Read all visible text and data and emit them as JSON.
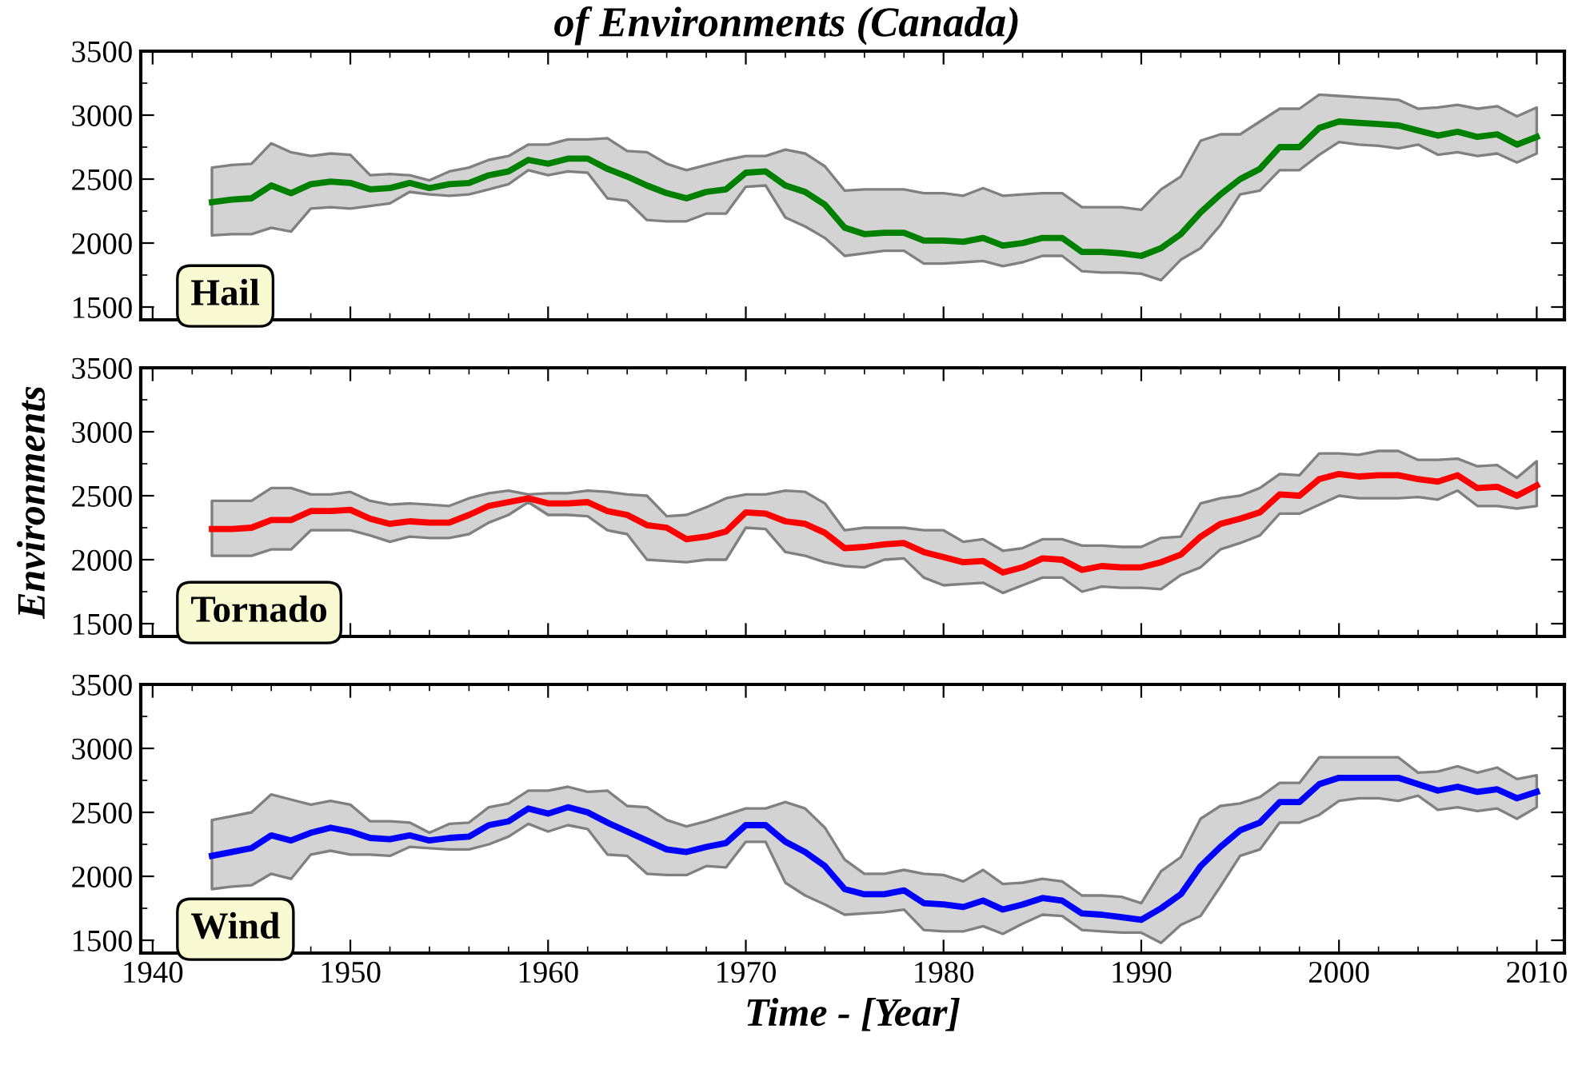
{
  "chart_data": [
    {
      "type": "line",
      "title": "of Environments (Canada)",
      "annotations": [
        "Hail"
      ],
      "xlim": [
        1939.4,
        2011.4
      ],
      "xticks": [
        1940,
        1950,
        1960,
        1970,
        1980,
        1990,
        2000,
        2010
      ],
      "ylim": [
        1400,
        3500
      ],
      "yticks": [
        1500,
        2000,
        2500,
        3000,
        3500
      ],
      "tick_labels": "y",
      "grid": false,
      "x": [
        1943,
        1944,
        1945,
        1946,
        1947,
        1948,
        1949,
        1950,
        1951,
        1952,
        1953,
        1954,
        1955,
        1956,
        1957,
        1958,
        1959,
        1960,
        1961,
        1962,
        1963,
        1964,
        1965,
        1966,
        1967,
        1968,
        1969,
        1970,
        1971,
        1972,
        1973,
        1974,
        1975,
        1976,
        1977,
        1978,
        1979,
        1980,
        1981,
        1982,
        1983,
        1984,
        1985,
        1986,
        1987,
        1988,
        1989,
        1990,
        1991,
        1992,
        1993,
        1994,
        1995,
        1996,
        1997,
        1998,
        1999,
        2000,
        2001,
        2002,
        2003,
        2004,
        2005,
        2006,
        2007,
        2008,
        2009,
        2010
      ],
      "series": [
        {
          "color": "#008000",
          "values": [
            2320,
            2340,
            2350,
            2450,
            2390,
            2460,
            2480,
            2470,
            2420,
            2430,
            2470,
            2430,
            2460,
            2470,
            2530,
            2560,
            2650,
            2620,
            2660,
            2660,
            2580,
            2520,
            2450,
            2390,
            2350,
            2400,
            2420,
            2550,
            2560,
            2450,
            2400,
            2300,
            2120,
            2070,
            2080,
            2080,
            2020,
            2020,
            2010,
            2040,
            1980,
            2000,
            2040,
            2040,
            1930,
            1930,
            1920,
            1900,
            1960,
            2070,
            2240,
            2380,
            2500,
            2580,
            2750,
            2750,
            2900,
            2950,
            2940,
            2930,
            2920,
            2880,
            2840,
            2870,
            2830,
            2850,
            2770,
            2830
          ],
          "upper": [
            2590,
            2610,
            2620,
            2780,
            2710,
            2680,
            2700,
            2690,
            2530,
            2540,
            2530,
            2490,
            2560,
            2590,
            2650,
            2680,
            2770,
            2770,
            2810,
            2810,
            2820,
            2720,
            2710,
            2620,
            2570,
            2610,
            2650,
            2680,
            2680,
            2730,
            2700,
            2600,
            2410,
            2420,
            2420,
            2420,
            2390,
            2390,
            2370,
            2430,
            2370,
            2380,
            2390,
            2390,
            2280,
            2280,
            2280,
            2260,
            2420,
            2520,
            2800,
            2850,
            2850,
            2950,
            3050,
            3050,
            3160,
            3150,
            3140,
            3130,
            3120,
            3050,
            3060,
            3080,
            3050,
            3070,
            2990,
            3060
          ],
          "lower": [
            2060,
            2070,
            2070,
            2120,
            2090,
            2270,
            2280,
            2270,
            2290,
            2310,
            2400,
            2380,
            2370,
            2380,
            2420,
            2460,
            2570,
            2530,
            2560,
            2550,
            2350,
            2330,
            2180,
            2170,
            2170,
            2230,
            2230,
            2440,
            2450,
            2200,
            2130,
            2040,
            1900,
            1920,
            1940,
            1940,
            1840,
            1840,
            1850,
            1860,
            1820,
            1850,
            1900,
            1900,
            1780,
            1770,
            1770,
            1760,
            1710,
            1870,
            1960,
            2140,
            2380,
            2410,
            2570,
            2570,
            2690,
            2790,
            2770,
            2760,
            2740,
            2770,
            2690,
            2710,
            2680,
            2700,
            2630,
            2700
          ]
        }
      ]
    },
    {
      "type": "line",
      "ylabel": "Environments",
      "annotations": [
        "Tornado"
      ],
      "xlim": [
        1939.4,
        2011.4
      ],
      "xticks": [
        1940,
        1950,
        1960,
        1970,
        1980,
        1990,
        2000,
        2010
      ],
      "ylim": [
        1400,
        3500
      ],
      "yticks": [
        1500,
        2000,
        2500,
        3000,
        3500
      ],
      "tick_labels": "y",
      "grid": false,
      "x": [
        1943,
        1944,
        1945,
        1946,
        1947,
        1948,
        1949,
        1950,
        1951,
        1952,
        1953,
        1954,
        1955,
        1956,
        1957,
        1958,
        1959,
        1960,
        1961,
        1962,
        1963,
        1964,
        1965,
        1966,
        1967,
        1968,
        1969,
        1970,
        1971,
        1972,
        1973,
        1974,
        1975,
        1976,
        1977,
        1978,
        1979,
        1980,
        1981,
        1982,
        1983,
        1984,
        1985,
        1986,
        1987,
        1988,
        1989,
        1990,
        1991,
        1992,
        1993,
        1994,
        1995,
        1996,
        1997,
        1998,
        1999,
        2000,
        2001,
        2002,
        2003,
        2004,
        2005,
        2006,
        2007,
        2008,
        2009,
        2010
      ],
      "series": [
        {
          "color": "#ff0000",
          "values": [
            2240,
            2240,
            2250,
            2310,
            2310,
            2380,
            2380,
            2390,
            2320,
            2280,
            2300,
            2290,
            2290,
            2350,
            2420,
            2450,
            2480,
            2440,
            2440,
            2450,
            2380,
            2350,
            2270,
            2250,
            2160,
            2180,
            2220,
            2370,
            2360,
            2300,
            2280,
            2210,
            2090,
            2100,
            2120,
            2130,
            2060,
            2020,
            1980,
            1990,
            1900,
            1940,
            2010,
            2000,
            1920,
            1950,
            1940,
            1940,
            1980,
            2040,
            2180,
            2280,
            2320,
            2370,
            2510,
            2500,
            2630,
            2670,
            2650,
            2660,
            2660,
            2630,
            2610,
            2660,
            2560,
            2570,
            2500,
            2580
          ],
          "upper": [
            2460,
            2460,
            2460,
            2560,
            2560,
            2510,
            2510,
            2530,
            2460,
            2430,
            2440,
            2430,
            2420,
            2480,
            2520,
            2540,
            2510,
            2520,
            2520,
            2540,
            2530,
            2510,
            2500,
            2340,
            2350,
            2410,
            2480,
            2510,
            2510,
            2540,
            2530,
            2440,
            2230,
            2250,
            2250,
            2250,
            2230,
            2230,
            2140,
            2160,
            2070,
            2090,
            2160,
            2160,
            2110,
            2110,
            2100,
            2100,
            2170,
            2180,
            2440,
            2480,
            2500,
            2560,
            2670,
            2660,
            2830,
            2830,
            2820,
            2850,
            2850,
            2780,
            2780,
            2790,
            2730,
            2740,
            2640,
            2770
          ],
          "lower": [
            2030,
            2030,
            2030,
            2080,
            2080,
            2230,
            2230,
            2230,
            2190,
            2140,
            2180,
            2170,
            2170,
            2200,
            2290,
            2350,
            2450,
            2350,
            2350,
            2340,
            2230,
            2200,
            2000,
            1990,
            1980,
            2000,
            2000,
            2250,
            2240,
            2060,
            2030,
            1980,
            1950,
            1940,
            2000,
            2010,
            1860,
            1800,
            1810,
            1820,
            1740,
            1800,
            1860,
            1860,
            1750,
            1790,
            1780,
            1780,
            1770,
            1880,
            1940,
            2080,
            2130,
            2190,
            2360,
            2360,
            2430,
            2500,
            2480,
            2480,
            2480,
            2490,
            2470,
            2540,
            2420,
            2420,
            2400,
            2420
          ]
        }
      ]
    },
    {
      "type": "line",
      "xlabel": "Time - [Year]",
      "annotations": [
        "Wind"
      ],
      "xlim": [
        1939.4,
        2011.4
      ],
      "xticks": [
        1940,
        1950,
        1960,
        1970,
        1980,
        1990,
        2000,
        2010
      ],
      "ylim": [
        1400,
        3500
      ],
      "yticks": [
        1500,
        2000,
        2500,
        3000,
        3500
      ],
      "grid": false,
      "x": [
        1943,
        1944,
        1945,
        1946,
        1947,
        1948,
        1949,
        1950,
        1951,
        1952,
        1953,
        1954,
        1955,
        1956,
        1957,
        1958,
        1959,
        1960,
        1961,
        1962,
        1963,
        1964,
        1965,
        1966,
        1967,
        1968,
        1969,
        1970,
        1971,
        1972,
        1973,
        1974,
        1975,
        1976,
        1977,
        1978,
        1979,
        1980,
        1981,
        1982,
        1983,
        1984,
        1985,
        1986,
        1987,
        1988,
        1989,
        1990,
        1991,
        1992,
        1993,
        1994,
        1995,
        1996,
        1997,
        1998,
        1999,
        2000,
        2001,
        2002,
        2003,
        2004,
        2005,
        2006,
        2007,
        2008,
        2009,
        2010
      ],
      "series": [
        {
          "color": "#0000ff",
          "values": [
            2160,
            2190,
            2220,
            2320,
            2280,
            2340,
            2380,
            2350,
            2300,
            2290,
            2320,
            2280,
            2300,
            2310,
            2400,
            2430,
            2530,
            2490,
            2540,
            2500,
            2420,
            2350,
            2280,
            2210,
            2190,
            2230,
            2260,
            2400,
            2400,
            2270,
            2190,
            2080,
            1900,
            1860,
            1860,
            1890,
            1790,
            1780,
            1760,
            1810,
            1740,
            1780,
            1830,
            1810,
            1710,
            1700,
            1680,
            1660,
            1750,
            1860,
            2080,
            2230,
            2360,
            2420,
            2580,
            2580,
            2720,
            2770,
            2770,
            2770,
            2770,
            2720,
            2670,
            2700,
            2660,
            2680,
            2610,
            2660
          ],
          "upper": [
            2440,
            2470,
            2500,
            2640,
            2600,
            2560,
            2590,
            2560,
            2430,
            2430,
            2420,
            2340,
            2410,
            2420,
            2540,
            2570,
            2670,
            2670,
            2700,
            2660,
            2670,
            2550,
            2540,
            2440,
            2390,
            2430,
            2480,
            2530,
            2530,
            2580,
            2530,
            2380,
            2130,
            2020,
            2020,
            2050,
            2020,
            2010,
            1960,
            2050,
            1940,
            1950,
            1980,
            1960,
            1850,
            1850,
            1840,
            1790,
            2040,
            2150,
            2450,
            2550,
            2570,
            2620,
            2730,
            2730,
            2930,
            2930,
            2930,
            2930,
            2930,
            2810,
            2820,
            2860,
            2810,
            2850,
            2760,
            2790
          ],
          "lower": [
            1900,
            1920,
            1930,
            2020,
            1980,
            2170,
            2200,
            2170,
            2170,
            2160,
            2230,
            2220,
            2210,
            2210,
            2250,
            2310,
            2410,
            2350,
            2400,
            2370,
            2170,
            2160,
            2020,
            2010,
            2010,
            2080,
            2070,
            2270,
            2270,
            1950,
            1850,
            1780,
            1700,
            1710,
            1720,
            1740,
            1580,
            1570,
            1570,
            1610,
            1550,
            1630,
            1700,
            1690,
            1580,
            1570,
            1560,
            1560,
            1480,
            1620,
            1690,
            1920,
            2160,
            2210,
            2420,
            2420,
            2480,
            2590,
            2610,
            2610,
            2590,
            2630,
            2520,
            2540,
            2510,
            2530,
            2450,
            2540
          ]
        }
      ]
    }
  ]
}
